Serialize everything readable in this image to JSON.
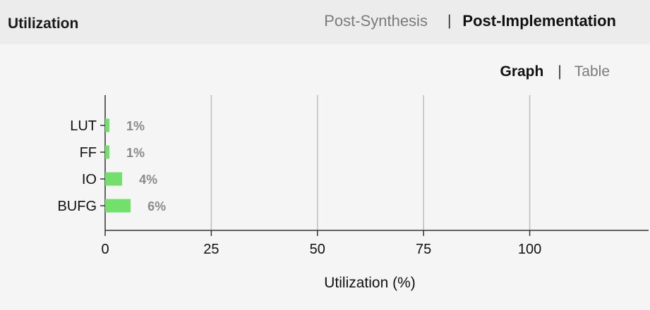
{
  "header": {
    "title": "Utilization",
    "tabs": [
      {
        "label": "Post-Synthesis",
        "active": false
      },
      {
        "label": "Post-Implementation",
        "active": true
      }
    ]
  },
  "view_tabs": [
    {
      "label": "Graph",
      "active": true
    },
    {
      "label": "Table",
      "active": false
    }
  ],
  "colors": {
    "bar": "#72e06a",
    "grid": "#bdbdbd",
    "axis": "#333333"
  },
  "chart_data": {
    "type": "bar",
    "orientation": "horizontal",
    "categories": [
      "LUT",
      "FF",
      "IO",
      "BUFG"
    ],
    "values": [
      1,
      1,
      4,
      6
    ],
    "data_labels": [
      "1%",
      "1%",
      "4%",
      "6%"
    ],
    "xlabel": "Utilization (%)",
    "xlim": [
      0,
      128
    ],
    "xticks": [
      0,
      25,
      50,
      75,
      100
    ],
    "grid": true
  }
}
